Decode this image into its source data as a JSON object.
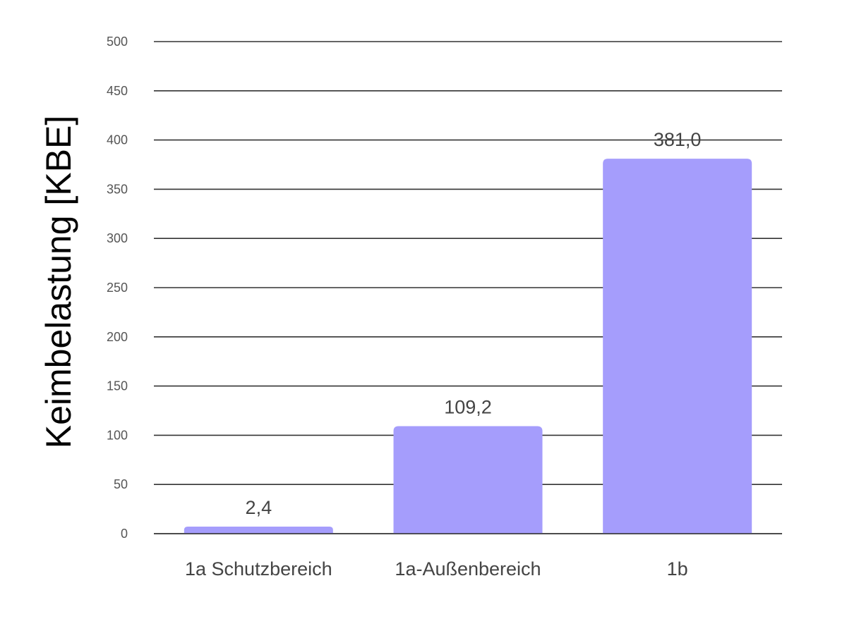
{
  "chart_data": {
    "type": "bar",
    "title": "",
    "xlabel": "",
    "ylabel": "Keimbelastung [KBE]",
    "categories": [
      "1a Schutzbereich",
      "1a-Außenbereich",
      "1b"
    ],
    "values": [
      2.4,
      109.2,
      381.0
    ],
    "data_labels": [
      "2,4",
      "109,2",
      "381,0"
    ],
    "ylim": [
      0,
      500
    ],
    "yticks": [
      0,
      50,
      100,
      150,
      200,
      250,
      300,
      350,
      400,
      450,
      500
    ],
    "grid": true,
    "legend": "none",
    "colors": {
      "bar": "#a59dfc",
      "grid": "#333333"
    }
  }
}
